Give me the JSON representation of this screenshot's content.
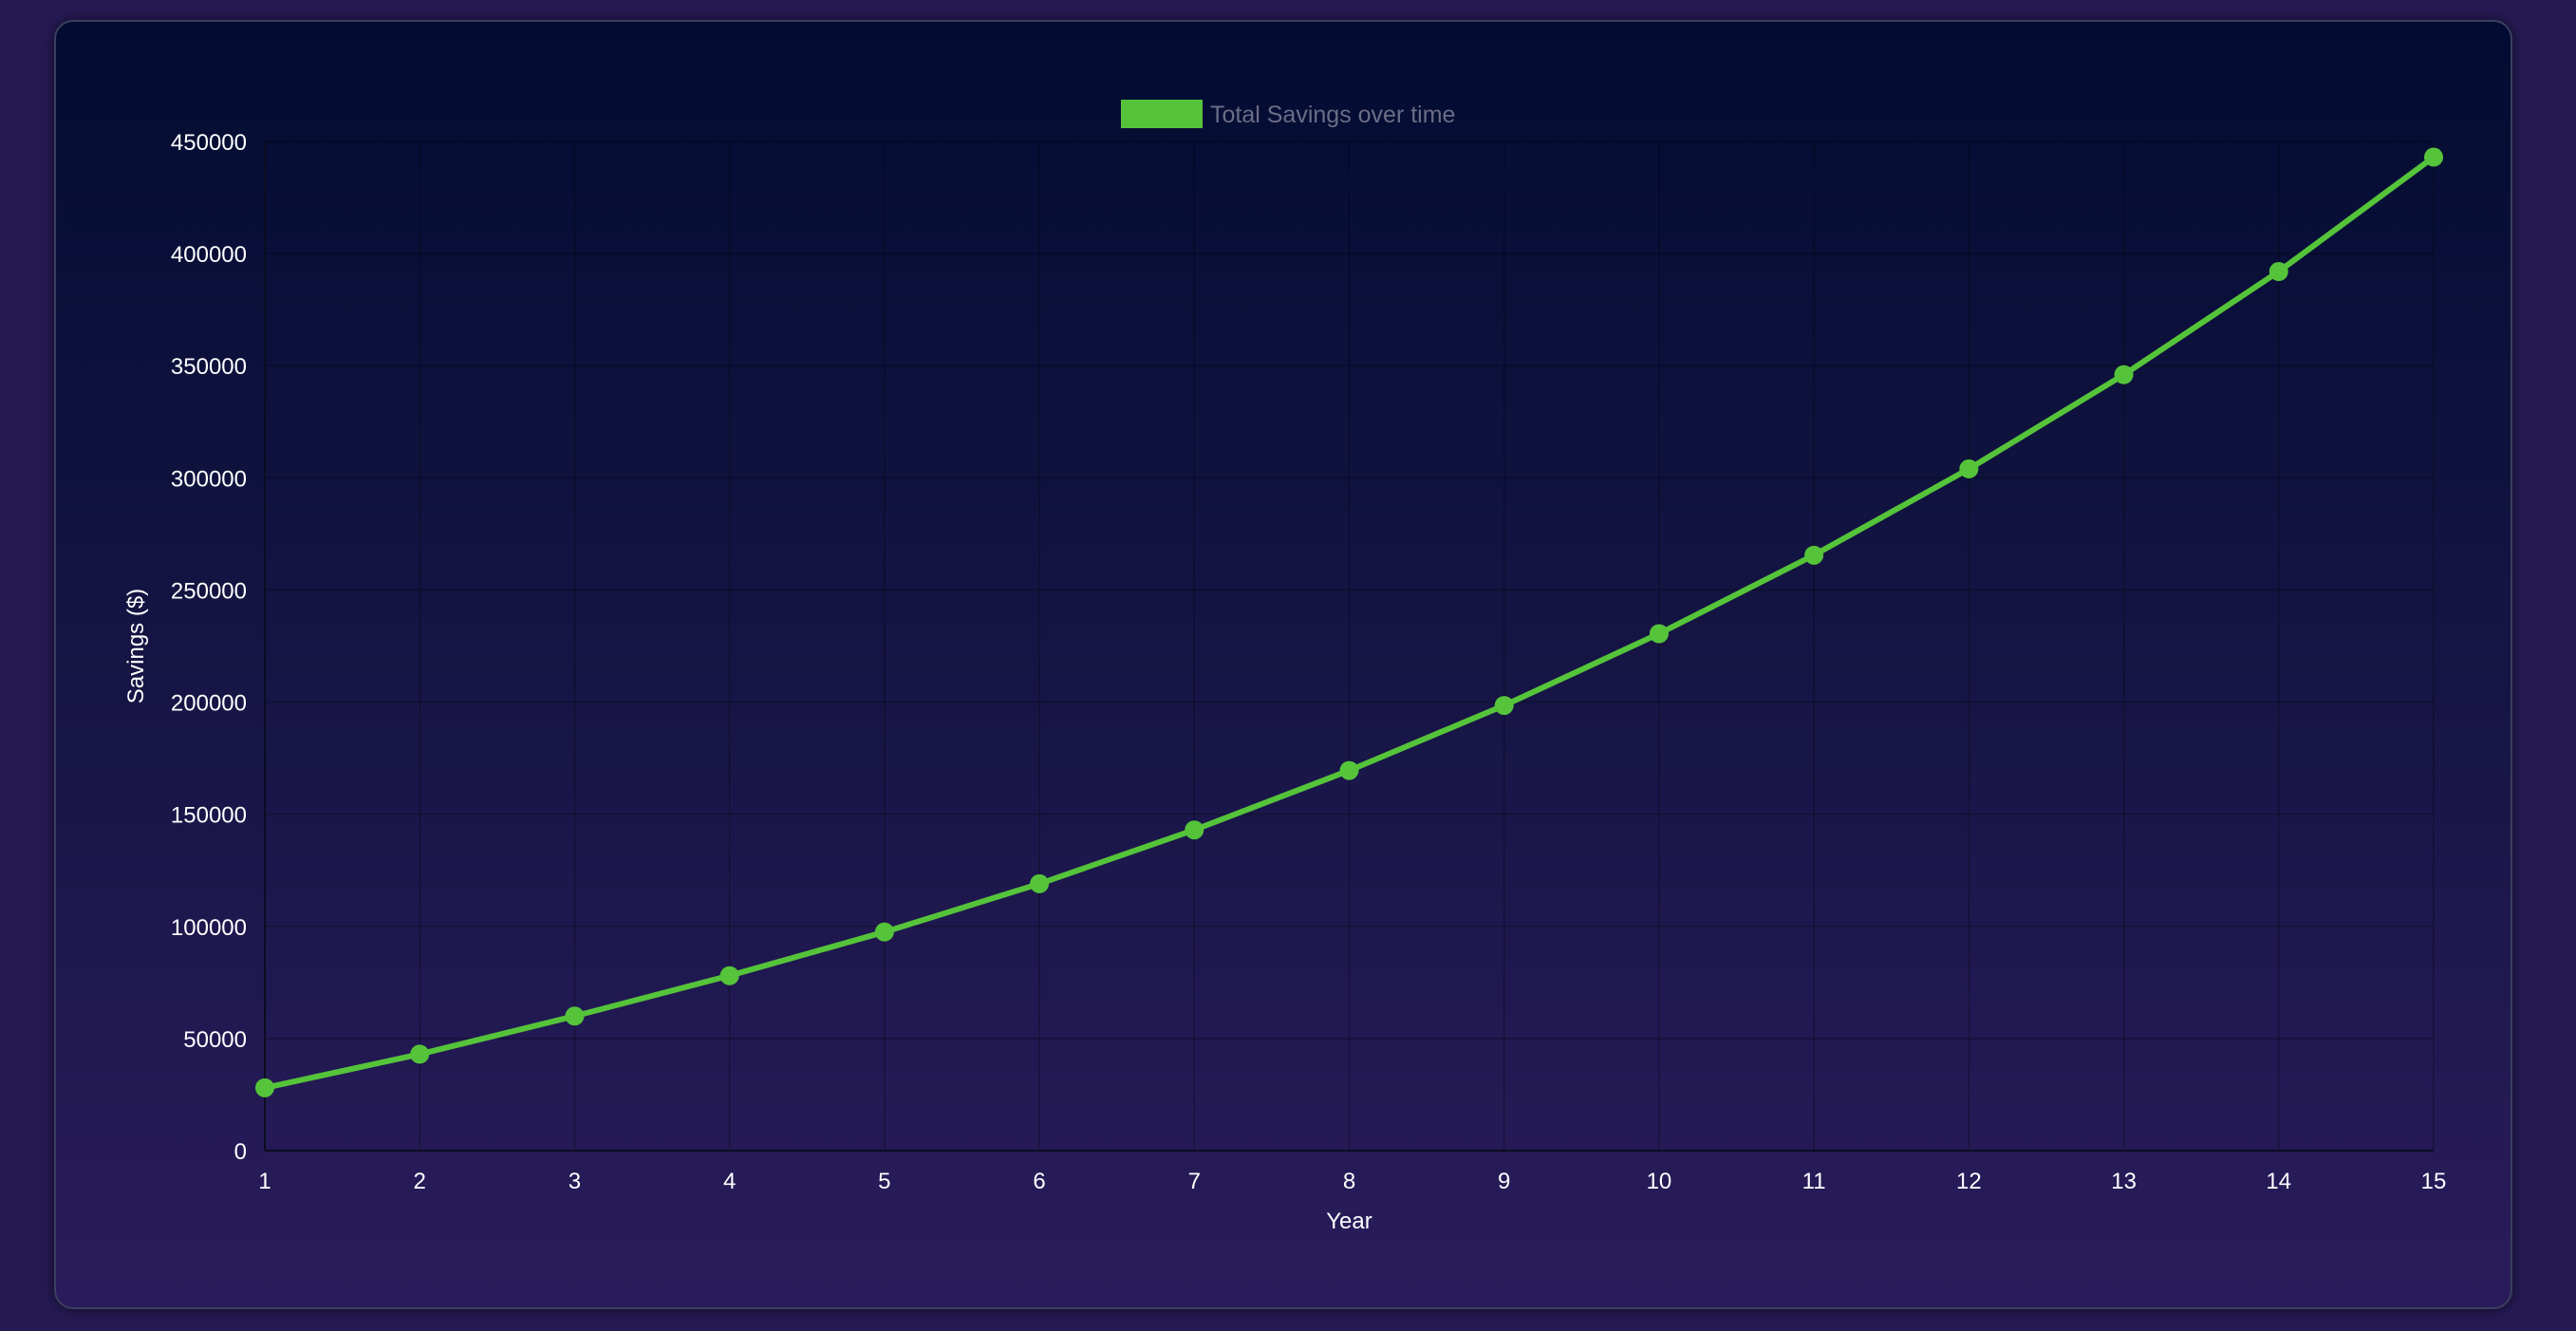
{
  "chart_data": {
    "type": "line",
    "x": [
      1,
      2,
      3,
      4,
      5,
      6,
      7,
      8,
      9,
      10,
      11,
      12,
      13,
      14,
      15
    ],
    "categories": [
      "1",
      "2",
      "3",
      "4",
      "5",
      "6",
      "7",
      "8",
      "9",
      "10",
      "11",
      "12",
      "13",
      "14",
      "15"
    ],
    "series": [
      {
        "name": "Total Savings over time",
        "values": [
          28000,
          43000,
          60000,
          78000,
          97500,
          119000,
          143000,
          169500,
          198500,
          230500,
          265500,
          304000,
          346000,
          392000,
          443000
        ],
        "color": "#55c43a"
      }
    ],
    "xlabel": "Year",
    "ylabel": "Savings ($)",
    "ylim": [
      0,
      450000
    ],
    "yticks": [
      "0",
      "50000",
      "100000",
      "150000",
      "200000",
      "250000",
      "300000",
      "350000",
      "400000",
      "450000"
    ],
    "ytick_values": [
      0,
      50000,
      100000,
      150000,
      200000,
      250000,
      300000,
      350000,
      400000,
      450000
    ],
    "grid": true,
    "legend_position": "top-center"
  }
}
